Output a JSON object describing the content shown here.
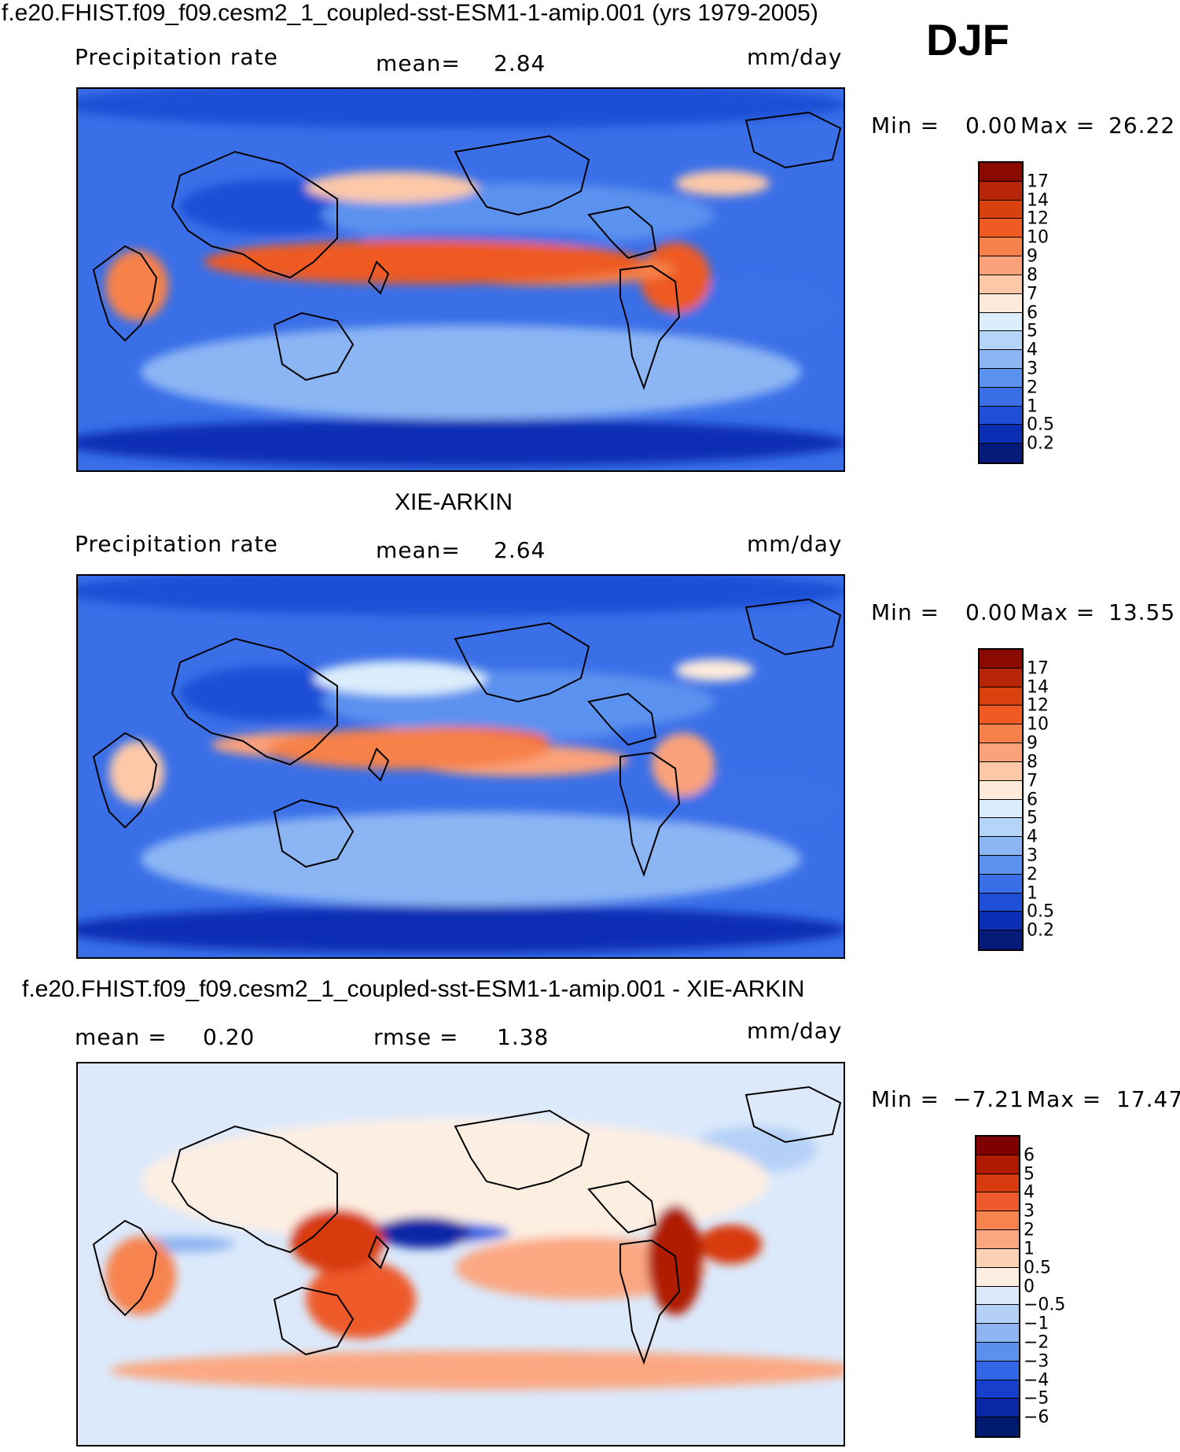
{
  "season": "DJF",
  "panels": [
    {
      "id": "model",
      "title": "f.e20.FHIST.f09_f09.cesm2_1_coupled-sst-ESM1-1-amip.001 (yrs 1979-2005)",
      "left_label": "Precipitation rate",
      "mid_label": "mean=",
      "mid_value": "2.84",
      "units": "mm/day",
      "min_label": "Min =",
      "min_value": "0.00",
      "max_label": "Max =",
      "max_value": "26.22",
      "levels": [
        "17",
        "14",
        "12",
        "10",
        "9",
        "8",
        "7",
        "6",
        "5",
        "4",
        "3",
        "2",
        "1",
        "0.5",
        "0.2"
      ],
      "colors": [
        "#8b0a00",
        "#b8260a",
        "#d8400e",
        "#ee5a22",
        "#f7814a",
        "#fba27a",
        "#fcc8a8",
        "#fdeadb",
        "#dceefc",
        "#b4d4f8",
        "#8cb5f4",
        "#5c92ef",
        "#3a6fe8",
        "#1f4fd6",
        "#0b2fb4",
        "#061a7a"
      ]
    },
    {
      "id": "obs",
      "title": "XIE-ARKIN",
      "left_label": "Precipitation rate",
      "mid_label": "mean=",
      "mid_value": "2.64",
      "units": "mm/day",
      "min_label": "Min =",
      "min_value": "0.00",
      "max_label": "Max =",
      "max_value": "13.55",
      "levels": [
        "17",
        "14",
        "12",
        "10",
        "9",
        "8",
        "7",
        "6",
        "5",
        "4",
        "3",
        "2",
        "1",
        "0.5",
        "0.2"
      ],
      "colors": [
        "#8b0a00",
        "#b8260a",
        "#d8400e",
        "#ee5a22",
        "#f7814a",
        "#fba27a",
        "#fcc8a8",
        "#fdeadb",
        "#dceefc",
        "#b4d4f8",
        "#8cb5f4",
        "#5c92ef",
        "#3a6fe8",
        "#1f4fd6",
        "#0b2fb4",
        "#061a7a"
      ]
    },
    {
      "id": "diff",
      "title": "f.e20.FHIST.f09_f09.cesm2_1_coupled-sst-ESM1-1-amip.001 - XIE-ARKIN",
      "left_label": "mean =",
      "left_value": "0.20",
      "mid_label": "rmse =",
      "mid_value": "1.38",
      "units": "mm/day",
      "min_label": "Min =",
      "min_value": "−7.21",
      "max_label": "Max =",
      "max_value": "17.47",
      "levels": [
        "6",
        "5",
        "4",
        "3",
        "2",
        "1",
        "0.5",
        "0",
        "−0.5",
        "−1",
        "−2",
        "−3",
        "−4",
        "−5",
        "−6"
      ],
      "colors": [
        "#7f0000",
        "#b01a00",
        "#d83a10",
        "#ee5a2c",
        "#f7834f",
        "#fba882",
        "#fcd0b4",
        "#fdeee2",
        "#dbe9fb",
        "#b5d0f7",
        "#8fb4f2",
        "#5d8fed",
        "#3366e6",
        "#1640cc",
        "#0a28a6",
        "#001a70"
      ]
    }
  ]
}
